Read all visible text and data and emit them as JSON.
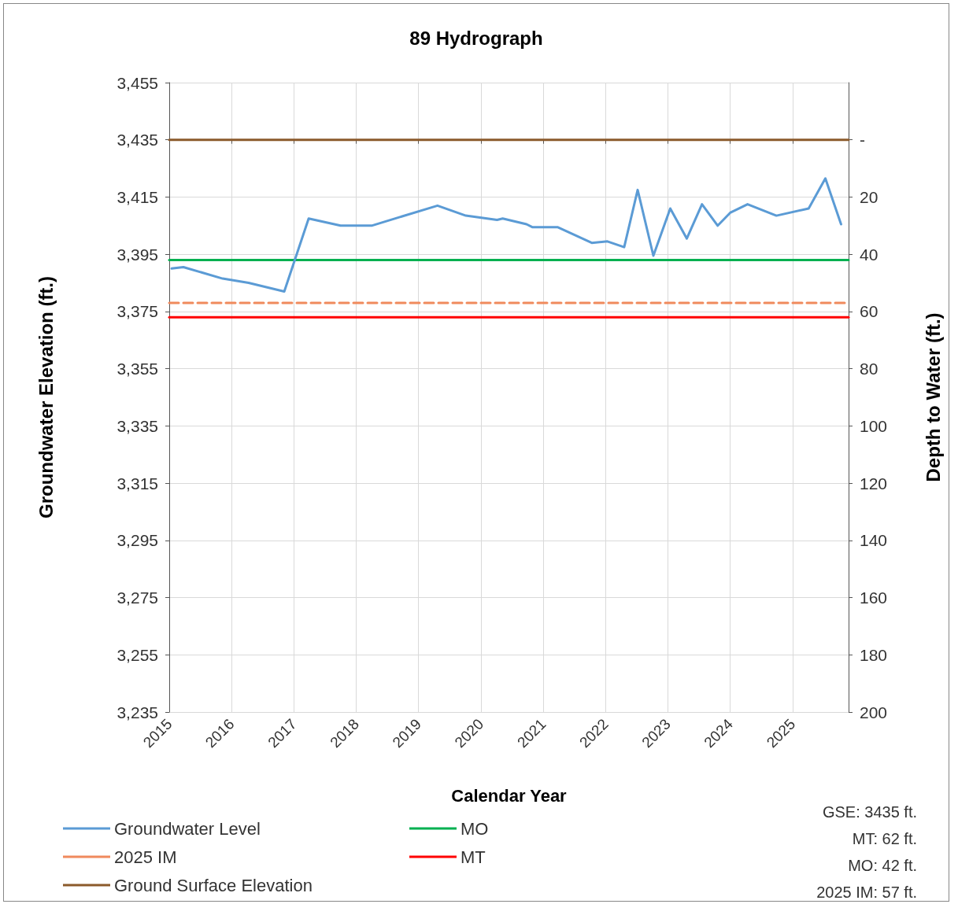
{
  "chart_data": {
    "type": "line",
    "title": "89 Hydrograph",
    "xlabel": "Calendar Year",
    "ylabel": "Groundwater Elevation (ft.)",
    "y2label": "Depth to Water (ft.)",
    "xlim": [
      "2015-01-01",
      "2025-11-25"
    ],
    "xticks": [
      "2015",
      "2016",
      "2017",
      "2018",
      "2019",
      "2020",
      "2021",
      "2022",
      "2023",
      "2024",
      "2025"
    ],
    "ylim": [
      3235,
      3455
    ],
    "yticks": [
      {
        "value": 3235,
        "label": "3,235"
      },
      {
        "value": 3255,
        "label": "3,255"
      },
      {
        "value": 3275,
        "label": "3,275"
      },
      {
        "value": 3295,
        "label": "3,295"
      },
      {
        "value": 3315,
        "label": "3,315"
      },
      {
        "value": 3335,
        "label": "3,335"
      },
      {
        "value": 3355,
        "label": "3,355"
      },
      {
        "value": 3375,
        "label": "3,375"
      },
      {
        "value": 3395,
        "label": "3,395"
      },
      {
        "value": 3415,
        "label": "3,415"
      },
      {
        "value": 3435,
        "label": "3,435"
      },
      {
        "value": 3455,
        "label": "3,455"
      }
    ],
    "y2lim": [
      200,
      -20
    ],
    "y2ticks": [
      {
        "value": 0,
        "label": "-"
      },
      20,
      40,
      60,
      80,
      100,
      120,
      140,
      160,
      180,
      200
    ],
    "grid": true,
    "legend": "bottom left",
    "series": [
      {
        "name": "Groundwater Level",
        "color": "#5b9bd5",
        "line_style": "solid",
        "x": [
          "2015-01-15",
          "2015-03-25",
          "2015-11-10",
          "2016-04-10",
          "2016-11-05",
          "2017-03-28",
          "2017-10-01",
          "2018-04-01",
          "2019-04-22",
          "2019-10-05",
          "2020-04-05",
          "2020-05-08",
          "2020-09-25",
          "2020-10-28",
          "2021-03-25",
          "2021-10-12",
          "2022-01-12",
          "2022-04-20",
          "2022-07-08",
          "2022-10-08",
          "2023-01-15",
          "2023-04-22",
          "2023-07-20",
          "2023-10-20",
          "2024-01-01",
          "2024-04-12",
          "2024-09-28",
          "2025-04-05",
          "2025-07-12",
          "2025-10-12"
        ],
        "values": [
          3390,
          3390.5,
          3386.5,
          3385,
          3382,
          3407.5,
          3405,
          3405,
          3412,
          3408.5,
          3407,
          3407.5,
          3405.5,
          3404.5,
          3404.5,
          3399,
          3399.5,
          3397.5,
          3417.5,
          3394.5,
          3411,
          3400.5,
          3412.5,
          3405,
          3409.5,
          3412.5,
          3408.5,
          3411,
          3421.5,
          3405.5
        ]
      },
      {
        "name": "MO",
        "color": "#00b050",
        "line_style": "solid",
        "marker": "none",
        "x": [
          "2015-01-01",
          "2025-11-25"
        ],
        "values": [
          3393,
          3393
        ]
      },
      {
        "name": "2025 IM",
        "color": "#f08a5d",
        "line_style": "dashed",
        "marker": "none",
        "x": [
          "2015-01-01",
          "2025-11-25"
        ],
        "values": [
          3378,
          3378
        ]
      },
      {
        "name": "MT",
        "color": "#ff0000",
        "line_style": "solid",
        "marker": "none",
        "x": [
          "2015-01-01",
          "2025-11-25"
        ],
        "values": [
          3373,
          3373
        ]
      },
      {
        "name": "Ground Surface Elevation",
        "color": "#8b5a2b",
        "line_style": "solid",
        "marker": "none",
        "x": [
          "2015-01-01",
          "2025-11-25"
        ],
        "values": [
          3435,
          3435
        ]
      }
    ],
    "annotations": [
      "GSE: 3435 ft.",
      "MT: 62 ft.",
      "MO: 42 ft.",
      "2025 IM: 57 ft."
    ]
  }
}
